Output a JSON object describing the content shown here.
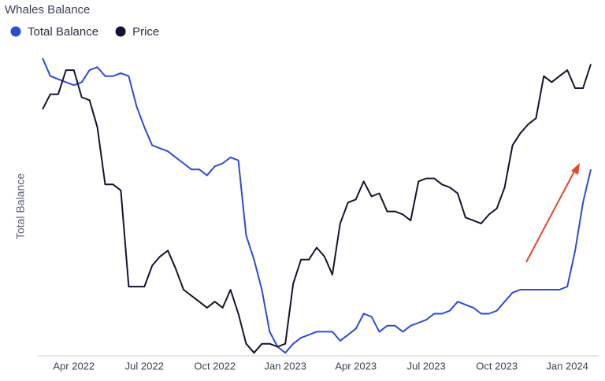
{
  "chart_data": {
    "type": "line",
    "title": "Whales Balance",
    "y_label": "Total Balance",
    "categories": [
      null,
      null,
      null,
      null,
      "Apr 2022",
      null,
      null,
      null,
      null,
      null,
      null,
      null,
      null,
      "Jul 2022",
      null,
      null,
      null,
      null,
      null,
      null,
      null,
      null,
      "Oct 2022",
      null,
      null,
      null,
      null,
      null,
      null,
      null,
      null,
      "Jan 2023",
      null,
      null,
      null,
      null,
      null,
      null,
      null,
      null,
      "Apr 2023",
      null,
      null,
      null,
      null,
      null,
      null,
      null,
      null,
      "Jul 2023",
      null,
      null,
      null,
      null,
      null,
      null,
      null,
      null,
      "Oct 2023",
      null,
      null,
      null,
      null,
      null,
      null,
      null,
      null,
      "Jan 2024",
      null,
      null,
      null
    ],
    "ylim": [
      0,
      100
    ],
    "series": [
      {
        "name": "Total Balance",
        "color": "#2f4bd6",
        "values": [
          99,
          93,
          92,
          91,
          90,
          91,
          95,
          96,
          93,
          93,
          94,
          93,
          83,
          76,
          70,
          69,
          68,
          66,
          64,
          62,
          62,
          60,
          63,
          64,
          66,
          65,
          40,
          32,
          22,
          8,
          3,
          1,
          4,
          6,
          7,
          8,
          8,
          8,
          5,
          7,
          9,
          14,
          13,
          8,
          10,
          10,
          8,
          10,
          11,
          12,
          14,
          14,
          15,
          18,
          17,
          16,
          14,
          14,
          15,
          18,
          21,
          22,
          22,
          22,
          22,
          22,
          22,
          23,
          35,
          51,
          62
        ]
      },
      {
        "name": "Price",
        "color": "#1b1030",
        "values": [
          82,
          87,
          87,
          95,
          95,
          86,
          85,
          76,
          57,
          57,
          55,
          23,
          23,
          23,
          30,
          33,
          35,
          29,
          22,
          20,
          18,
          16,
          18,
          16,
          22,
          14,
          4,
          1,
          4,
          4,
          3,
          4,
          24,
          32,
          32,
          36,
          33,
          27,
          44,
          51,
          52,
          58,
          53,
          54,
          48,
          48,
          47,
          45,
          58,
          59,
          59,
          57,
          56,
          54,
          46,
          45,
          44,
          47,
          49,
          56,
          70,
          74,
          77,
          79,
          93,
          91,
          93,
          95,
          89,
          89,
          97
        ]
      }
    ]
  }
}
